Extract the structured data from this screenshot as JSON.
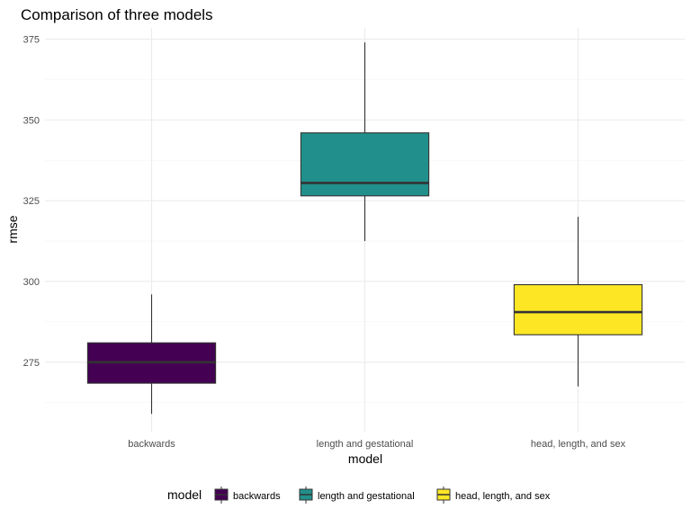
{
  "chart_data": {
    "type": "box",
    "title": "Comparison of three models",
    "xlabel": "model",
    "ylabel": "rmse",
    "ylim": [
      253.5,
      378.5
    ],
    "yticks": [
      275,
      300,
      325,
      350,
      375
    ],
    "yminor": [
      262.5,
      287.5,
      312.5,
      337.5,
      362.5
    ],
    "grid": true,
    "legend": {
      "title": "model",
      "position": "bottom"
    },
    "categories": [
      "backwards",
      "length and gestational",
      "head, length, and sex"
    ],
    "series": [
      {
        "name": "backwards",
        "color": "#440154",
        "min": 259,
        "q1": 268.5,
        "median": 275,
        "q3": 281,
        "max": 296
      },
      {
        "name": "length and gestational",
        "color": "#21908C",
        "min": 312.5,
        "q1": 326.5,
        "median": 330.5,
        "q3": 346,
        "max": 374
      },
      {
        "name": "head, length, and sex",
        "color": "#FDE725",
        "min": 267.5,
        "q1": 283.5,
        "median": 290.5,
        "q3": 299,
        "max": 320
      }
    ]
  }
}
